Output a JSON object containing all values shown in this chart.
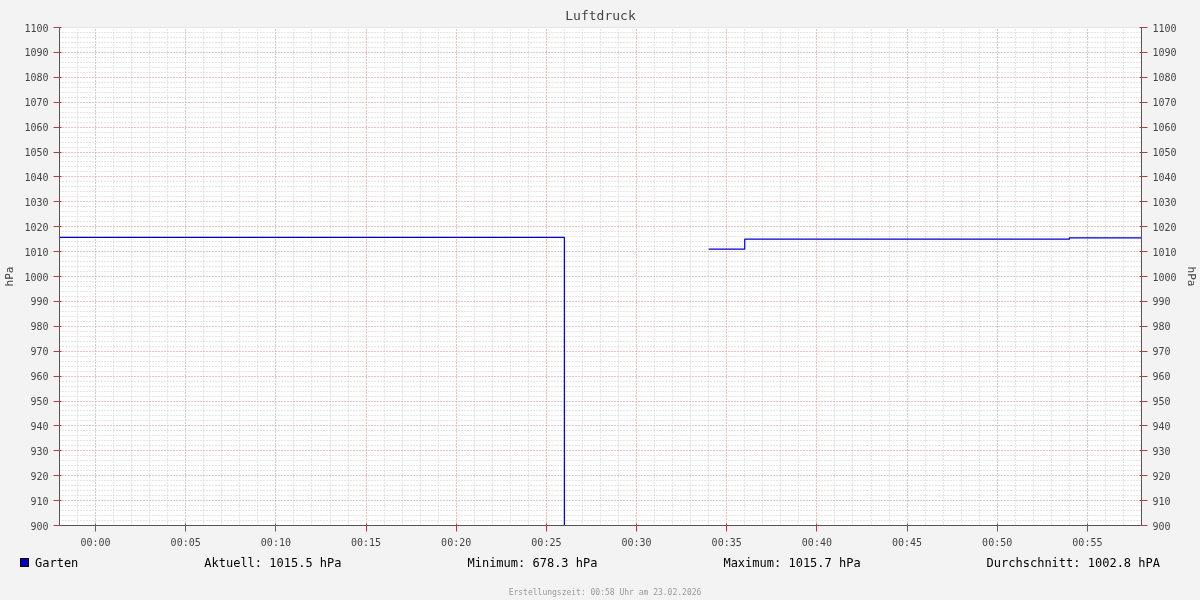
{
  "chart_data": {
    "type": "step",
    "title": "Luftdruck",
    "ylabel": "hPa",
    "y2label": "hPa",
    "x": [
      -0.0333,
      0.4333,
      0.45,
      0.5667,
      0.6,
      0.9,
      0.9667
    ],
    "series": [
      {
        "name": "Garten",
        "color": "#0000cc",
        "values": [
          1015.7,
          900,
          null,
          1011,
          1015,
          1015.5,
          1015.5
        ]
      }
    ],
    "xlim": [
      -0.0333,
      0.9667
    ],
    "xticks": [
      {
        "value": 0,
        "label": "00:00"
      },
      {
        "value": 0.0833,
        "label": "00:05"
      },
      {
        "value": 0.1667,
        "label": "00:10"
      },
      {
        "value": 0.25,
        "label": "00:15"
      },
      {
        "value": 0.3333,
        "label": "00:20"
      },
      {
        "value": 0.4167,
        "label": "00:25"
      },
      {
        "value": 0.5,
        "label": "00:30"
      },
      {
        "value": 0.5833,
        "label": "00:35"
      },
      {
        "value": 0.6667,
        "label": "00:40"
      },
      {
        "value": 0.75,
        "label": "00:45"
      },
      {
        "value": 0.8333,
        "label": "00:50"
      },
      {
        "value": 0.9167,
        "label": "00:55"
      }
    ],
    "ylim": [
      900,
      1100
    ],
    "yticks": [
      900,
      910,
      920,
      930,
      940,
      950,
      960,
      970,
      980,
      990,
      1000,
      1010,
      1020,
      1030,
      1040,
      1050,
      1060,
      1070,
      1080,
      1090,
      1100
    ],
    "y2lim": [
      900,
      1100
    ],
    "y2ticks": [
      900,
      910,
      920,
      930,
      940,
      950,
      960,
      970,
      980,
      990,
      1000,
      1010,
      1020,
      1030,
      1040,
      1050,
      1060,
      1070,
      1080,
      1090,
      1100
    ],
    "grid": true,
    "legend": "bottom",
    "line_style": "solid",
    "marker": "none",
    "annotations": [
      "Aktuell: 1015.5 hPa",
      "Minimum: 678.3 hPa",
      "Maximum: 1015.7 hPa",
      "Durchschnitt: 1002.8 hPA",
      "Erstellungszeit: 00:58 Uhr am 23.02.2026"
    ]
  }
}
